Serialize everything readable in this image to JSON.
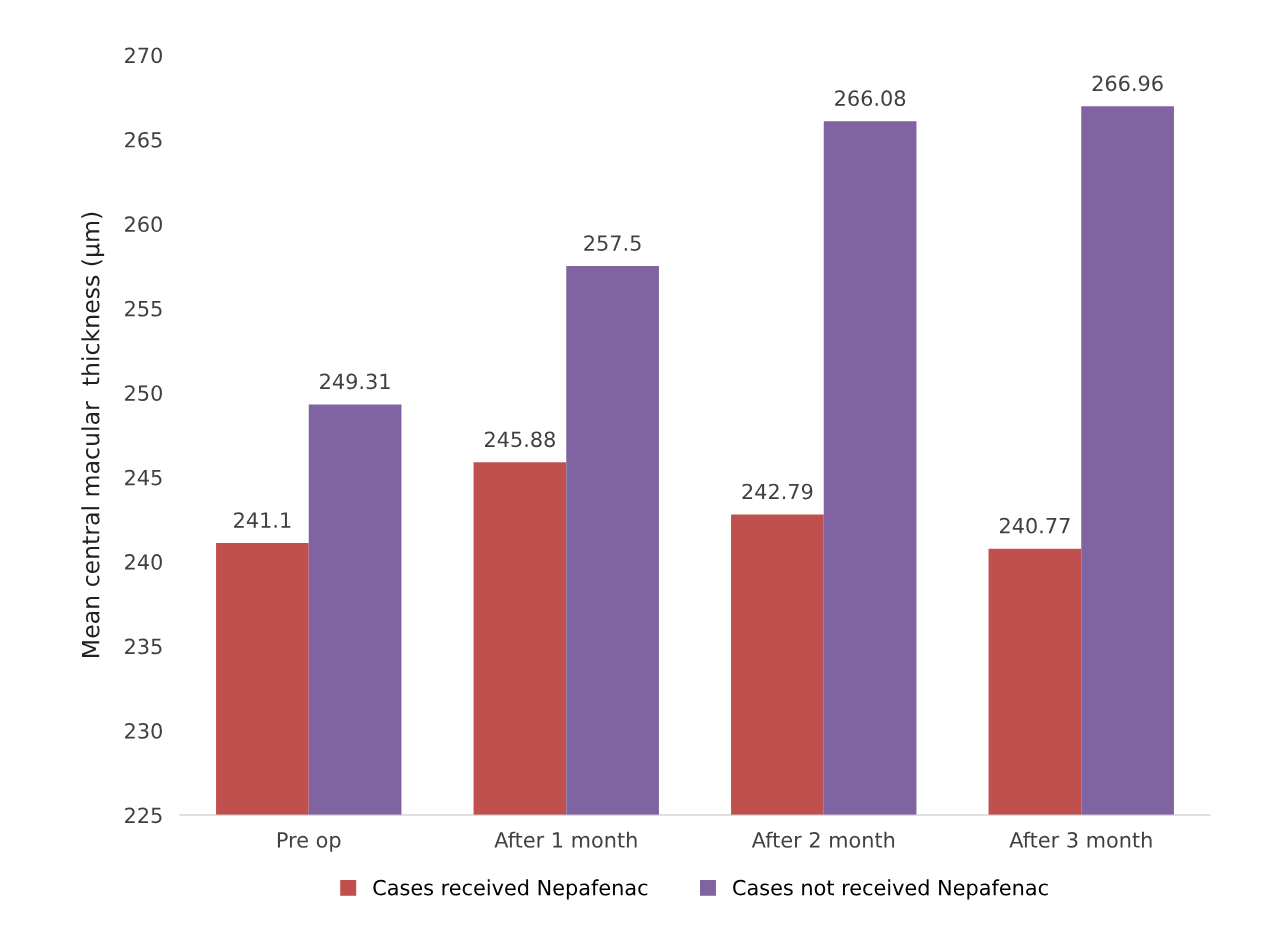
{
  "chart_data": {
    "type": "bar",
    "ylabel": "Mean central macular  thickness (µm)",
    "categories": [
      "Pre op",
      "After 1 month",
      "After 2 month",
      "After 3 month"
    ],
    "series": [
      {
        "name": "Cases received Nepafenac",
        "color": "#c0504d",
        "values": [
          241.1,
          245.88,
          242.79,
          240.77
        ]
      },
      {
        "name": "Cases not received Nepafenac",
        "color": "#8064a2",
        "values": [
          249.31,
          257.5,
          266.08,
          266.96
        ]
      }
    ],
    "ylim": [
      225,
      270
    ],
    "yticks": [
      225,
      230,
      235,
      240,
      245,
      250,
      255,
      260,
      265,
      270
    ],
    "data_labels": true,
    "grid": false,
    "legend": "bottom"
  }
}
